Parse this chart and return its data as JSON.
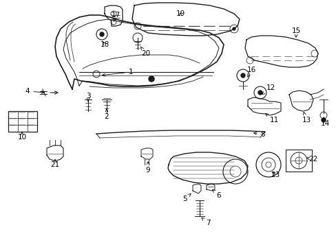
{
  "background_color": "#ffffff",
  "line_color": "#1a1a1a",
  "fig_width": 4.89,
  "fig_height": 3.6,
  "dpi": 100,
  "xlim": [
    0,
    489
  ],
  "ylim": [
    0,
    360
  ]
}
